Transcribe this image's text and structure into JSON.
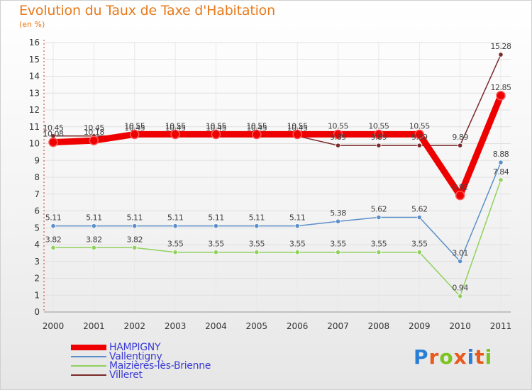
{
  "title": "Evolution du Taux de Taxe d'Habitation",
  "subtitle": "(en %)",
  "logo": {
    "text": "Proxiti",
    "colors": [
      "#2a7fd4",
      "#e85a1c",
      "#7cc41e",
      "#e85a1c",
      "#2a7fd4",
      "#e85a1c",
      "#7cc41e"
    ]
  },
  "chart_data": {
    "type": "line",
    "x": [
      "2000",
      "2001",
      "2002",
      "2003",
      "2004",
      "2005",
      "2006",
      "2007",
      "2008",
      "2009",
      "2010",
      "2011"
    ],
    "ylim": [
      0,
      16
    ],
    "yticks": [
      "0",
      "1",
      "2",
      "3",
      "4",
      "5",
      "6",
      "7",
      "8",
      "9",
      "10",
      "11",
      "12",
      "13",
      "14",
      "15",
      "16"
    ],
    "grid": true,
    "legend_position": "bottom-left",
    "series": [
      {
        "name": "HAMPIGNY",
        "color": "#ee0000",
        "emphasis": true,
        "values": [
          10.08,
          10.18,
          10.55,
          10.55,
          10.55,
          10.55,
          10.55,
          10.55,
          10.55,
          10.55,
          6.92,
          12.85
        ],
        "labels": [
          "10.08",
          "10.18",
          "10.55",
          "10.55",
          "10.55",
          "10.55",
          "10.55",
          "10.55",
          "10.55",
          "10.55",
          "6.92",
          "12.85"
        ]
      },
      {
        "name": "Vallentigny",
        "color": "#5b8fc9",
        "values": [
          5.11,
          5.11,
          5.11,
          5.11,
          5.11,
          5.11,
          5.11,
          5.38,
          5.62,
          5.62,
          3.01,
          8.88
        ],
        "labels": [
          "5.11",
          "5.11",
          "5.11",
          "5.11",
          "5.11",
          "5.11",
          "5.11",
          "5.38",
          "5.62",
          "5.62",
          "3.01",
          "8.88"
        ]
      },
      {
        "name": "Maizières-lès-Brienne",
        "color": "#8fd15c",
        "values": [
          3.82,
          3.82,
          3.82,
          3.55,
          3.55,
          3.55,
          3.55,
          3.55,
          3.55,
          3.55,
          0.94,
          7.84
        ],
        "labels": [
          "3.82",
          "3.82",
          "3.82",
          "3.55",
          "3.55",
          "3.55",
          "3.55",
          "3.55",
          "3.55",
          "3.55",
          "0.94",
          "7.84"
        ]
      },
      {
        "name": "Villeret",
        "color": "#7a2a2a",
        "values": [
          10.45,
          10.45,
          10.45,
          10.45,
          10.45,
          10.45,
          10.45,
          9.89,
          9.89,
          9.89,
          9.89,
          15.28
        ],
        "labels": [
          "10.45",
          "10.45",
          "10.45",
          "10.45",
          "10.45",
          "10.45",
          "10.45",
          "9.89",
          "9.89",
          "9.89",
          "9.89",
          "15.28"
        ]
      }
    ]
  }
}
